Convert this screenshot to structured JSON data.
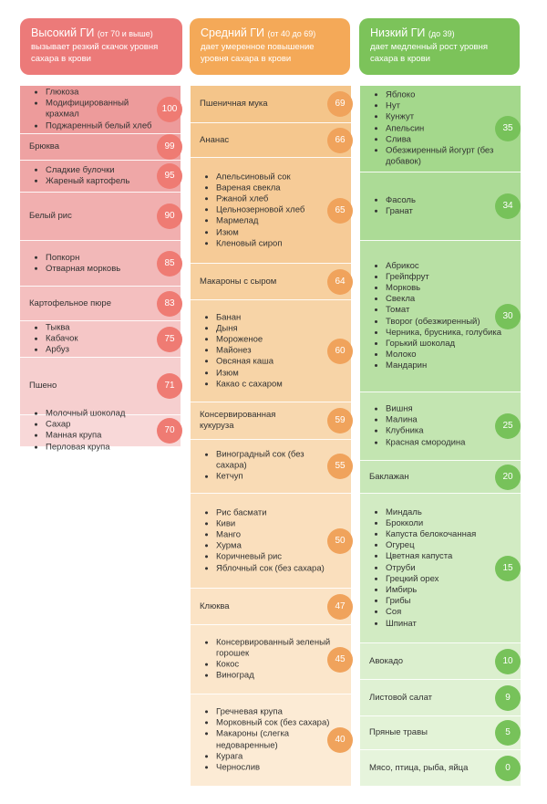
{
  "columns": [
    {
      "title": "Высокий ГИ",
      "range": "(от 70 и выше)",
      "subtitle": "вызывает резкий скачок уровня сахара в крови",
      "colors": {
        "header": "#ec7a79",
        "badge": "#ef7b73"
      },
      "rows": [
        {
          "items": [
            "Глюкоза",
            "Модифицированный крахмал",
            "Поджаренный белый хлеб"
          ],
          "gi": "100"
        },
        {
          "label": "Брюква",
          "gi": "99"
        },
        {
          "items": [
            "Сладкие булочки",
            "Жареный картофель"
          ],
          "gi": "95"
        },
        {
          "label": "Белый рис",
          "gi": "90"
        },
        {
          "items": [
            "Попкорн",
            "Отварная морковь"
          ],
          "gi": "85"
        },
        {
          "label": "Картофельное пюре",
          "gi": "83"
        },
        {
          "items": [
            "Тыква",
            "Кабачок",
            "Арбуз"
          ],
          "gi": "75"
        },
        {
          "label": "Пшено",
          "gi": "71"
        },
        {
          "items": [
            "Молочный шоколад",
            "Сахар",
            "Манная крупа",
            "Перловая крупа"
          ],
          "gi": "70"
        }
      ]
    },
    {
      "title": "Средний ГИ",
      "range": "(от 40 до 69)",
      "subtitle": "дает умеренное повышение уровня сахара в крови",
      "colors": {
        "header": "#f4a958",
        "badge": "#f0a35c"
      },
      "rows": [
        {
          "label": "Пшеничная мука",
          "gi": "69"
        },
        {
          "label": "Ананас",
          "gi": "66"
        },
        {
          "items": [
            "Апельсиновый сок",
            "Вареная свекла",
            "Ржаной хлеб",
            "Цельнозерновой хлеб",
            "Мармелад",
            "Изюм",
            "Кленовый сироп"
          ],
          "gi": "65"
        },
        {
          "label": "Макароны с сыром",
          "gi": "64"
        },
        {
          "items": [
            "Банан",
            "Дыня",
            "Мороженое",
            "Майонез",
            "Овсяная каша",
            "Изюм",
            "Какао с сахаром"
          ],
          "gi": "60"
        },
        {
          "label": "Консервированная кукуруза",
          "gi": "59"
        },
        {
          "items": [
            "Виноградный сок (без сахара)",
            "Кетчуп"
          ],
          "gi": "55"
        },
        {
          "items": [
            "Рис басмати",
            "Киви",
            "Манго",
            "Хурма",
            "Коричневый рис",
            "Яблочный сок (без сахара)"
          ],
          "gi": "50"
        },
        {
          "label": "Клюква",
          "gi": "47"
        },
        {
          "items": [
            "Консервированный зеленый горошек",
            "Кокос",
            "Виноград"
          ],
          "gi": "45"
        },
        {
          "items": [
            "Гречневая крупа",
            "Морковный сок (без сахара)",
            "Макароны (слегка недоваренные)",
            "Курага",
            "Чернослив"
          ],
          "gi": "40"
        }
      ]
    },
    {
      "title": "Низкий ГИ",
      "range": "(до 39)",
      "subtitle": "дает медленный рост уровня сахара в крови",
      "colors": {
        "header": "#7cc35a",
        "badge": "#77c25a"
      },
      "rows": [
        {
          "items": [
            "Яблоко",
            "Нут",
            "Кунжут",
            "Апельсин",
            "Слива",
            "Обезжиренный йогурт (без добавок)"
          ],
          "gi": "35"
        },
        {
          "items": [
            "Фасоль",
            "Гранат"
          ],
          "gi": "34"
        },
        {
          "items": [
            "Абрикос",
            "Грейпфрут",
            "Морковь",
            "Свекла",
            "Томат",
            "Творог (обезжиренный)",
            "Черника, брусника, голубика",
            "Горький шоколад",
            "Молоко",
            "Мандарин"
          ],
          "gi": "30"
        },
        {
          "items": [
            "Вишня",
            "Малина",
            "Клубника",
            "Красная смородина"
          ],
          "gi": "25"
        },
        {
          "label": "Баклажан",
          "gi": "20"
        },
        {
          "items": [
            "Миндаль",
            "Брокколи",
            "Капуста белокочанная",
            "Огурец",
            "Цветная капуста",
            "Отруби",
            "Грецкий орех",
            "Имбирь",
            "Грибы",
            "Соя",
            "Шпинат"
          ],
          "gi": "15"
        },
        {
          "label": "Авокадо",
          "gi": "10"
        },
        {
          "label": "Листовой салат",
          "gi": "9"
        },
        {
          "label": "Пряные травы",
          "gi": "5"
        },
        {
          "label": "Мясо, птица, рыба, яйца",
          "gi": "0"
        }
      ]
    }
  ]
}
